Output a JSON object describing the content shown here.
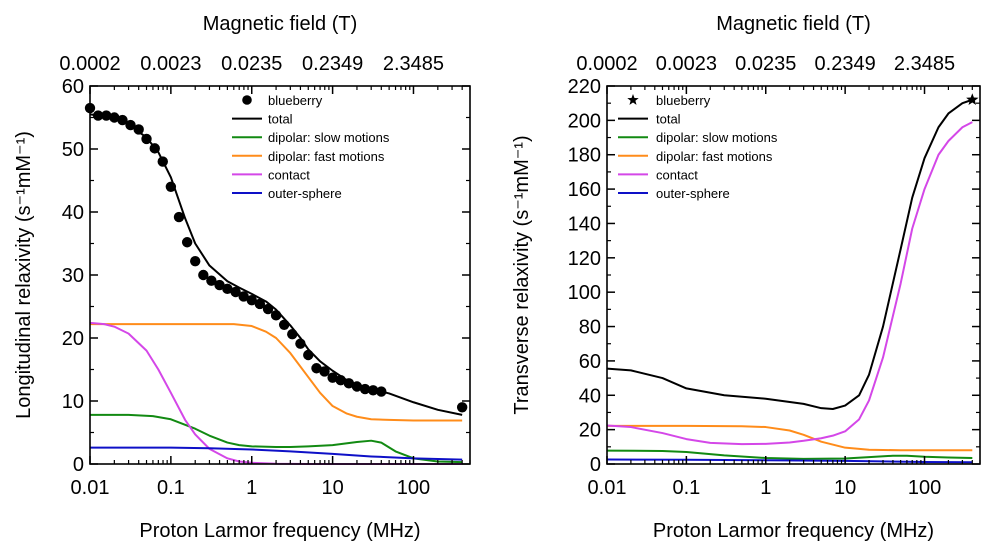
{
  "chart_data": [
    {
      "type": "line",
      "xlabel": "Proton Larmor frequency (MHz)",
      "ylabel": "Longitudinal relaxivity (s⁻¹mM⁻¹)",
      "x2label": "Magnetic field (T)",
      "xscale": "log",
      "xlim": [
        0.01,
        500
      ],
      "ylim": [
        0,
        60
      ],
      "xticks": [
        0.01,
        0.1,
        1,
        10,
        100
      ],
      "xtick_labels": [
        "0.01",
        "0.1",
        "1",
        "10",
        "100"
      ],
      "yticks": [
        0,
        10,
        20,
        30,
        40,
        50,
        60
      ],
      "ytick_labels": [
        "0",
        "10",
        "20",
        "30",
        "40",
        "50",
        "60"
      ],
      "x2ticks": [
        0.01,
        0.1,
        1,
        10,
        100
      ],
      "x2tick_labels": [
        "0.0002",
        "0.0023",
        "0.0235",
        "0.2349",
        "2.3485"
      ],
      "legend_position": "top-right",
      "series": [
        {
          "name": "blueberry",
          "kind": "marker",
          "marker": "circle",
          "color": "#000000",
          "x": [
            0.01,
            0.0126,
            0.0159,
            0.02,
            0.0252,
            0.0317,
            0.04,
            0.05,
            0.0632,
            0.0794,
            0.1,
            0.126,
            0.159,
            0.2,
            0.252,
            0.317,
            0.4,
            0.5,
            0.632,
            0.794,
            1,
            1.26,
            1.59,
            2,
            2.52,
            3.17,
            4,
            5,
            6.32,
            7.94,
            10,
            12.6,
            15.9,
            20,
            25.2,
            31.7,
            40,
            400
          ],
          "y": [
            56.5,
            55.3,
            55.3,
            55.0,
            54.6,
            53.8,
            53.1,
            51.6,
            50.1,
            48.0,
            44.0,
            39.2,
            35.2,
            32.2,
            30.0,
            29.1,
            28.4,
            27.8,
            27.3,
            26.6,
            26.0,
            25.4,
            24.6,
            23.6,
            22.1,
            20.6,
            19.1,
            17.3,
            15.2,
            14.7,
            13.7,
            13.3,
            12.8,
            12.3,
            11.9,
            11.7,
            11.5,
            9.0
          ]
        },
        {
          "name": "total",
          "kind": "line",
          "color": "#000000",
          "x": [
            0.01,
            0.02,
            0.03,
            0.05,
            0.07,
            0.1,
            0.15,
            0.2,
            0.3,
            0.5,
            0.7,
            1,
            1.5,
            2,
            3,
            4,
            5,
            7,
            10,
            15,
            20,
            30,
            50,
            100,
            200,
            400
          ],
          "y": [
            55.5,
            55.0,
            54.0,
            51.8,
            49.5,
            45.5,
            39.0,
            35.0,
            31.5,
            29.0,
            28.0,
            27.0,
            25.8,
            24.5,
            22.0,
            20.0,
            18.2,
            16.3,
            14.8,
            13.3,
            12.6,
            11.9,
            11.2,
            9.8,
            8.6,
            7.8
          ]
        },
        {
          "name": "dipolar: slow motions",
          "kind": "line",
          "color": "#128a12",
          "x": [
            0.01,
            0.03,
            0.06,
            0.1,
            0.2,
            0.3,
            0.5,
            0.7,
            1,
            2,
            3,
            5,
            10,
            20,
            30,
            40,
            60,
            100,
            200,
            400
          ],
          "y": [
            7.8,
            7.8,
            7.6,
            7.1,
            5.6,
            4.5,
            3.4,
            3.0,
            2.8,
            2.7,
            2.7,
            2.8,
            3.0,
            3.5,
            3.7,
            3.4,
            2.0,
            0.9,
            0.4,
            0.3
          ]
        },
        {
          "name": "dipolar: fast motions",
          "kind": "line",
          "color": "#ff8c1a",
          "x": [
            0.01,
            0.1,
            0.3,
            0.6,
            1,
            1.5,
            2,
            3,
            5,
            7,
            10,
            15,
            20,
            30,
            50,
            100,
            200,
            400
          ],
          "y": [
            22.2,
            22.2,
            22.2,
            22.2,
            21.9,
            21.0,
            20.0,
            17.6,
            13.8,
            11.3,
            9.2,
            8.0,
            7.5,
            7.1,
            7.0,
            6.9,
            6.9,
            6.9
          ]
        },
        {
          "name": "contact",
          "kind": "line",
          "color": "#d447e8",
          "x": [
            0.01,
            0.015,
            0.02,
            0.03,
            0.05,
            0.07,
            0.1,
            0.15,
            0.2,
            0.3,
            0.5,
            0.7,
            1,
            2,
            5,
            10,
            100,
            400
          ],
          "y": [
            22.4,
            22.2,
            21.8,
            20.7,
            18.0,
            15.0,
            11.3,
            7.0,
            4.7,
            2.4,
            0.9,
            0.4,
            0.2,
            0.05,
            0.0,
            0.0,
            0.0,
            0.0
          ]
        },
        {
          "name": "outer-sphere",
          "kind": "line",
          "color": "#0e10c7",
          "x": [
            0.01,
            0.1,
            0.3,
            1,
            3,
            10,
            30,
            100,
            400
          ],
          "y": [
            2.6,
            2.6,
            2.5,
            2.3,
            2.0,
            1.6,
            1.2,
            0.9,
            0.7
          ]
        }
      ]
    },
    {
      "type": "line",
      "xlabel": "Proton Larmor frequency (MHz)",
      "ylabel": "Transverse relaxivity (s⁻¹mM⁻¹)",
      "x2label": "Magnetic field (T)",
      "xscale": "log",
      "xlim": [
        0.01,
        500
      ],
      "ylim": [
        0,
        220
      ],
      "xticks": [
        0.01,
        0.1,
        1,
        10,
        100
      ],
      "xtick_labels": [
        "0.01",
        "0.1",
        "1",
        "10",
        "100"
      ],
      "yticks": [
        0,
        20,
        40,
        60,
        80,
        100,
        120,
        140,
        160,
        180,
        200,
        220
      ],
      "ytick_labels": [
        "0",
        "20",
        "40",
        "60",
        "80",
        "100",
        "120",
        "140",
        "160",
        "180",
        "200",
        "220"
      ],
      "x2ticks": [
        0.01,
        0.1,
        1,
        10,
        100
      ],
      "x2tick_labels": [
        "0.0002",
        "0.0023",
        "0.0235",
        "0.2349",
        "2.3485"
      ],
      "legend_position": "top-left",
      "series": [
        {
          "name": "blueberry",
          "kind": "marker",
          "marker": "star",
          "color": "#000000",
          "x": [
            400
          ],
          "y": [
            212
          ]
        },
        {
          "name": "total",
          "kind": "line",
          "color": "#000000",
          "x": [
            0.01,
            0.02,
            0.05,
            0.1,
            0.3,
            1,
            3,
            5,
            7,
            10,
            15,
            20,
            30,
            50,
            70,
            100,
            150,
            200,
            300,
            400
          ],
          "y": [
            55.5,
            54.5,
            50.0,
            44.0,
            40.0,
            38.0,
            35.0,
            32.5,
            32.0,
            34.0,
            40.0,
            52.0,
            80.0,
            125.0,
            155.0,
            178.0,
            196.0,
            204.0,
            210.0,
            212.0
          ]
        },
        {
          "name": "dipolar: slow motions",
          "kind": "line",
          "color": "#128a12",
          "x": [
            0.01,
            0.05,
            0.1,
            0.3,
            1,
            3,
            10,
            20,
            40,
            60,
            100,
            200,
            400
          ],
          "y": [
            7.8,
            7.6,
            7.0,
            5.0,
            3.5,
            3.0,
            3.2,
            4.0,
            4.8,
            4.8,
            4.2,
            3.8,
            3.5
          ]
        },
        {
          "name": "dipolar: fast motions",
          "kind": "line",
          "color": "#ff8c1a",
          "x": [
            0.01,
            0.1,
            0.5,
            1,
            2,
            3,
            5,
            10,
            20,
            50,
            100,
            400
          ],
          "y": [
            22.2,
            22.2,
            22.0,
            21.5,
            19.5,
            17.0,
            13.0,
            9.5,
            8.3,
            8.0,
            8.0,
            8.0
          ]
        },
        {
          "name": "contact",
          "kind": "line",
          "color": "#d447e8",
          "x": [
            0.01,
            0.02,
            0.05,
            0.1,
            0.2,
            0.5,
            1,
            2,
            3,
            5,
            7,
            10,
            15,
            20,
            30,
            50,
            70,
            100,
            150,
            200,
            300,
            400
          ],
          "y": [
            22.4,
            21.5,
            18.0,
            14.5,
            12.3,
            11.6,
            11.7,
            12.5,
            13.5,
            15.0,
            16.5,
            19.0,
            26.0,
            37.0,
            62.0,
            105.0,
            137.0,
            160.0,
            180.0,
            188.0,
            196.0,
            199.0
          ]
        },
        {
          "name": "outer-sphere",
          "kind": "line",
          "color": "#0e10c7",
          "x": [
            0.01,
            0.1,
            1,
            10,
            100,
            400
          ],
          "y": [
            2.6,
            2.5,
            2.2,
            1.8,
            1.2,
            1.0
          ]
        }
      ]
    }
  ]
}
